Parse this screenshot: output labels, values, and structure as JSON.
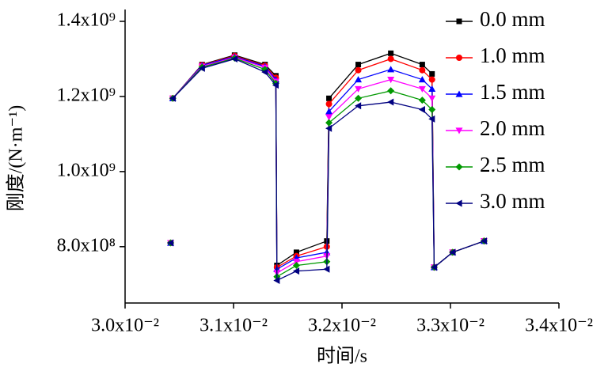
{
  "chart_data": {
    "type": "line",
    "xlabel": "时间/s",
    "ylabel": "刚度/(N·m⁻¹)",
    "x": [
      0.03042,
      0.03043,
      0.03044,
      0.03071,
      0.03101,
      0.03129,
      0.03139,
      0.0314,
      0.03158,
      0.03186,
      0.03188,
      0.03215,
      0.03245,
      0.03274,
      0.03283,
      0.03285,
      0.03302,
      0.03331
    ],
    "series": [
      {
        "name": "0.0 mm",
        "color": "#000000",
        "marker": "square",
        "values": [
          810000000,
          null,
          1195000000,
          1285000000,
          1310000000,
          1285000000,
          1255000000,
          750000000,
          785000000,
          815000000,
          1195000000,
          1285000000,
          1315000000,
          1285000000,
          1260000000,
          745000000,
          785000000,
          815000000
        ]
      },
      {
        "name": "1.0 mm",
        "color": "#ff0000",
        "marker": "circle",
        "values": [
          810000000,
          null,
          1195000000,
          1284000000,
          1308000000,
          1282000000,
          1250000000,
          745000000,
          775000000,
          800000000,
          1180000000,
          1270000000,
          1300000000,
          1270000000,
          1245000000,
          745000000,
          785000000,
          815000000
        ]
      },
      {
        "name": "1.5 mm",
        "color": "#0000ff",
        "marker": "triangle-up",
        "values": [
          810000000,
          null,
          1195000000,
          1283000000,
          1306000000,
          1280000000,
          1245000000,
          740000000,
          770000000,
          785000000,
          1160000000,
          1245000000,
          1272000000,
          1245000000,
          1220000000,
          745000000,
          785000000,
          815000000
        ]
      },
      {
        "name": "2.0 mm",
        "color": "#ff00ff",
        "marker": "triangle-down",
        "values": [
          810000000,
          null,
          1195000000,
          1280000000,
          1304000000,
          1277000000,
          1240000000,
          730000000,
          760000000,
          775000000,
          1145000000,
          1220000000,
          1245000000,
          1220000000,
          1195000000,
          745000000,
          785000000,
          815000000
        ]
      },
      {
        "name": "2.5 mm",
        "color": "#009900",
        "marker": "diamond",
        "values": [
          810000000,
          null,
          1195000000,
          1278000000,
          1302000000,
          1272000000,
          1235000000,
          720000000,
          750000000,
          760000000,
          1130000000,
          1195000000,
          1215000000,
          1190000000,
          1165000000,
          745000000,
          785000000,
          815000000
        ]
      },
      {
        "name": "3.0 mm",
        "color": "#000080",
        "marker": "triangle-left",
        "values": [
          810000000,
          null,
          1195000000,
          1275000000,
          1300000000,
          1265000000,
          1230000000,
          710000000,
          735000000,
          740000000,
          1115000000,
          1175000000,
          1185000000,
          1165000000,
          1140000000,
          745000000,
          785000000,
          815000000
        ]
      }
    ],
    "xlim": [
      0.03,
      0.034
    ],
    "xticks": [
      {
        "value": 0.03,
        "label": "3.0x10⁻²"
      },
      {
        "value": 0.031,
        "label": "3.1x10⁻²"
      },
      {
        "value": 0.032,
        "label": "3.2x10⁻²"
      },
      {
        "value": 0.033,
        "label": "3.3x10⁻²"
      },
      {
        "value": 0.034,
        "label": "3.4x10⁻²"
      }
    ],
    "ylim": [
      650000000,
      1430000000
    ],
    "yticks": [
      {
        "value": 800000000,
        "label": "8.0x10⁸"
      },
      {
        "value": 1000000000,
        "label": "1.0x10⁹"
      },
      {
        "value": 1200000000,
        "label": "1.2x10⁹"
      },
      {
        "value": 1400000000,
        "label": "1.4x10⁹"
      }
    ],
    "legend": "upper right"
  }
}
